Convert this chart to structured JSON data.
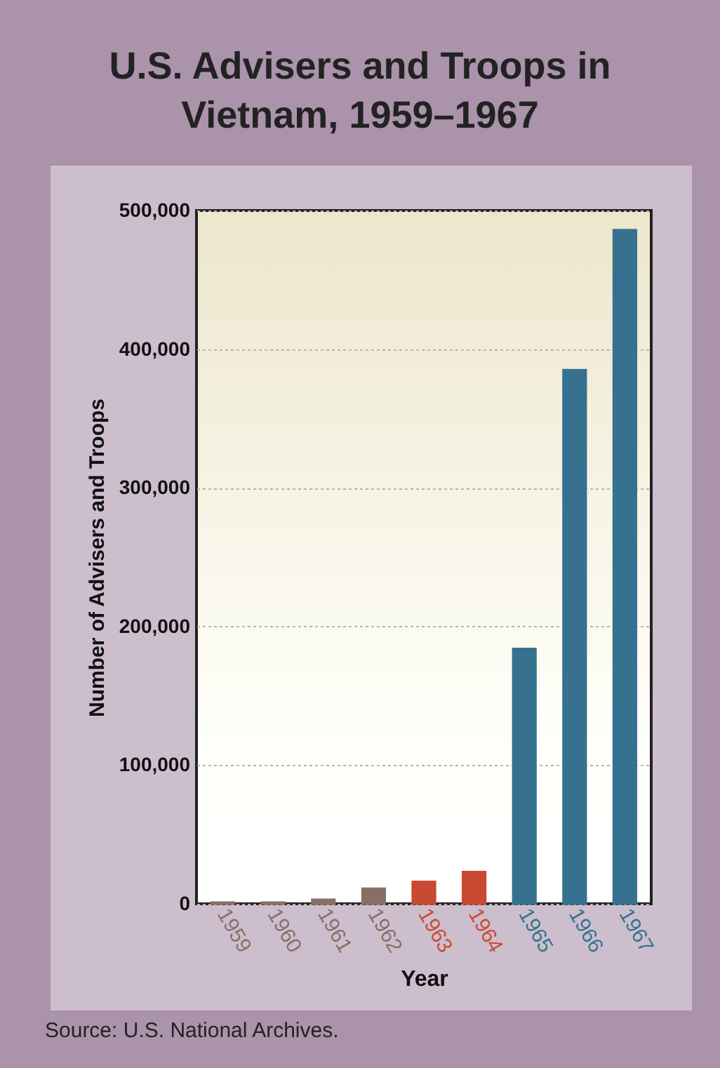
{
  "chart_data": {
    "type": "bar",
    "title": "U.S. Advisers and Troops in Vietnam, 1959–1967",
    "xlabel": "Year",
    "ylabel": "Number of Advisers and Troops",
    "categories": [
      "1959",
      "1960",
      "1961",
      "1962",
      "1963",
      "1964",
      "1965",
      "1966",
      "1967"
    ],
    "values": [
      1000,
      1000,
      3000,
      11000,
      16000,
      23000,
      184000,
      385000,
      486000
    ],
    "colors": [
      "#8a6e66",
      "#8a6e66",
      "#8a6e66",
      "#8a6e66",
      "#c84a32",
      "#c84a32",
      "#367290",
      "#367290",
      "#367290"
    ],
    "ylim": [
      0,
      500000
    ],
    "yticks": [
      {
        "value": 0,
        "label": "0"
      },
      {
        "value": 100000,
        "label": "100,000"
      },
      {
        "value": 200000,
        "label": "200,000"
      },
      {
        "value": 300000,
        "label": "300,000"
      },
      {
        "value": 400000,
        "label": "400,000"
      },
      {
        "value": 500000,
        "label": "500,000"
      }
    ],
    "grid": "y",
    "legend": false,
    "annotations": [
      "Source: U.S. National Archives."
    ]
  }
}
